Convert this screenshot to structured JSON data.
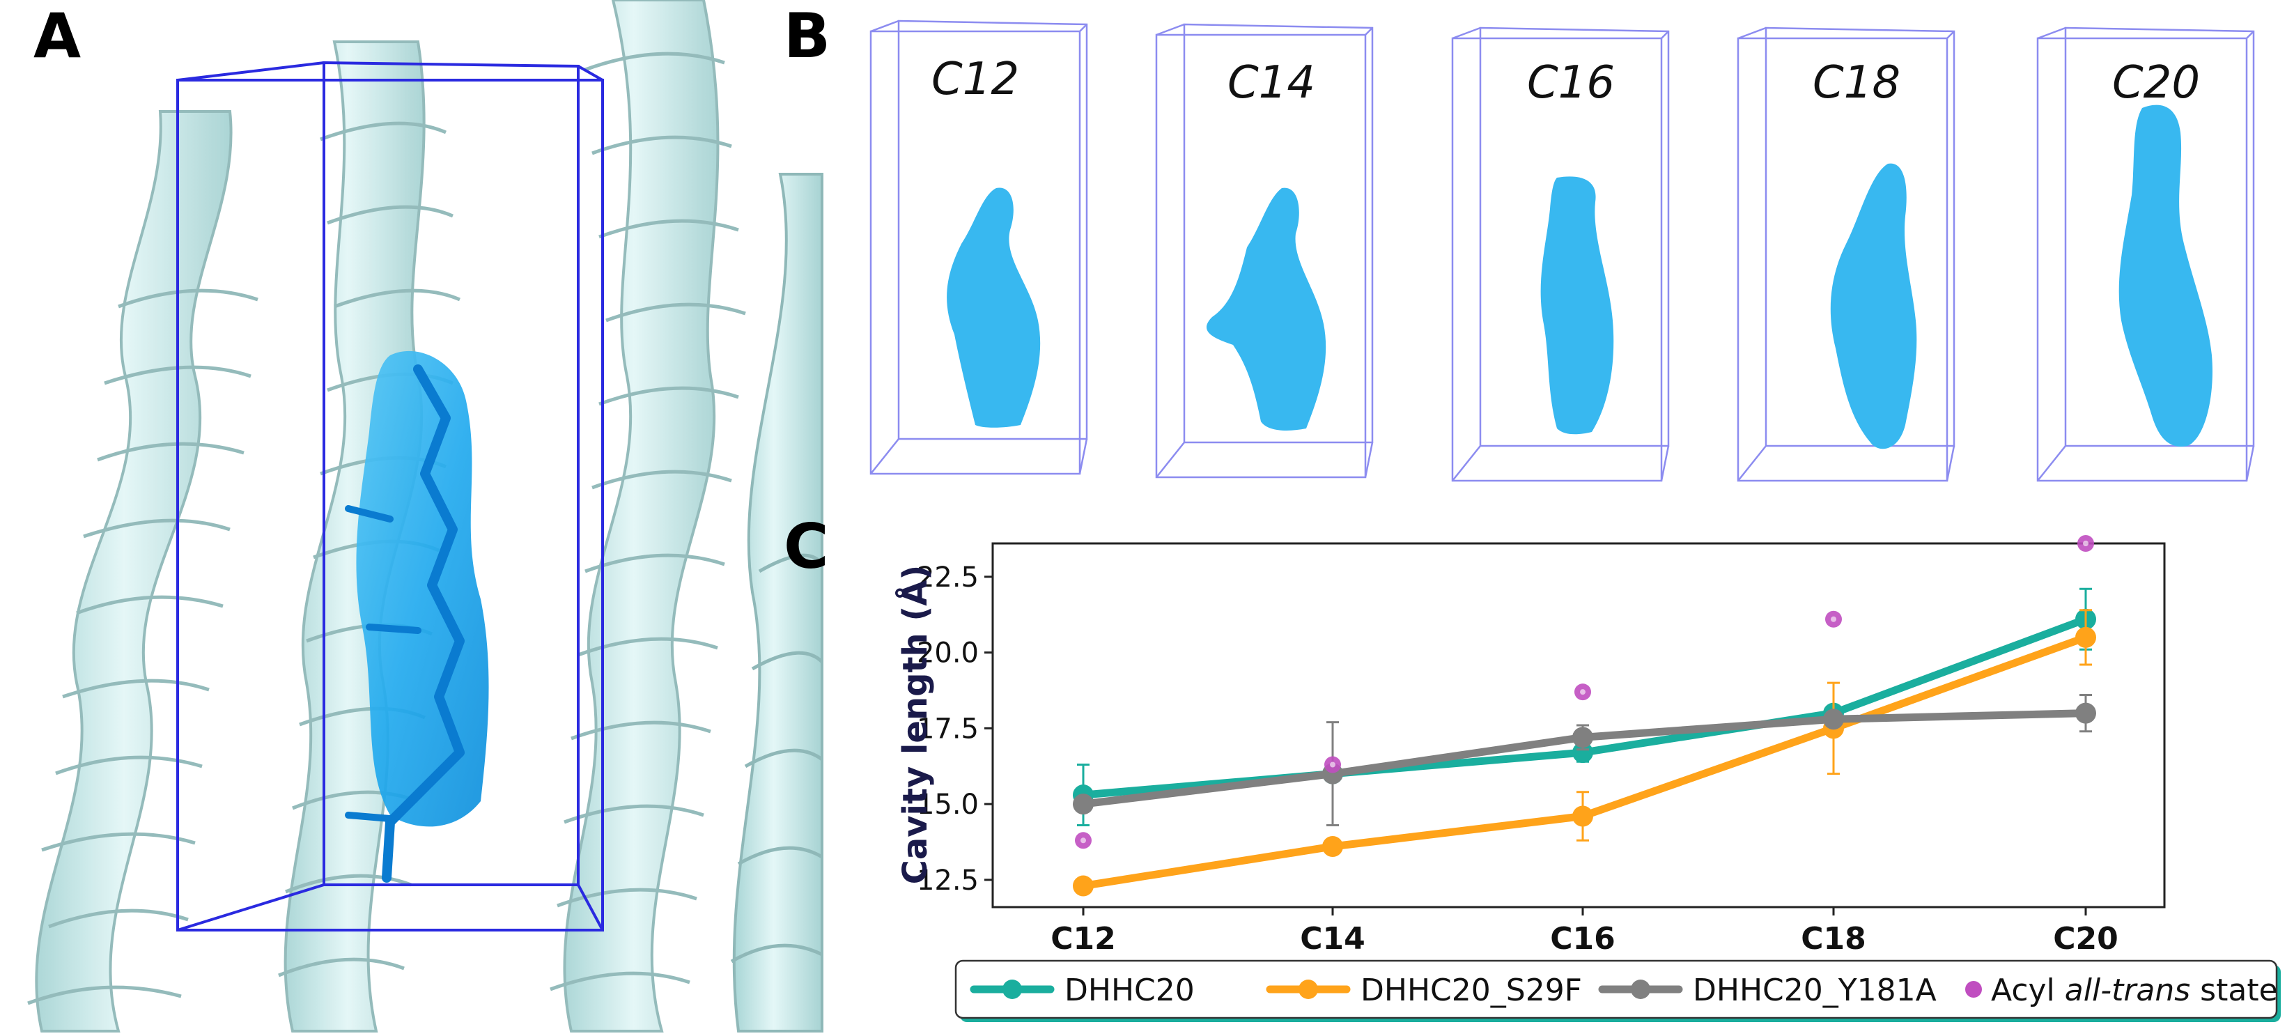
{
  "panels": {
    "a": "A",
    "b": "B",
    "c": "C"
  },
  "cavity_labels": [
    "C12",
    "C14",
    "C16",
    "C18",
    "C20"
  ],
  "colors": {
    "ribbon": "#c8ecec",
    "ribbon_edge": "#8fb8b8",
    "cavity": "#1ea8ec",
    "cavity_dark": "#0a7bd0",
    "box": "#2a2ae0",
    "box_light": "#8c8cf0",
    "dhhc20": "#1aae9e",
    "s29f": "#ffa31a",
    "y181a": "#808080",
    "alltrans": "#c04ec0"
  },
  "chart_data": {
    "type": "line",
    "title": "",
    "xlabel": "",
    "ylabel": "Cavity length (Å)",
    "categories": [
      "C12",
      "C14",
      "C16",
      "C18",
      "C20"
    ],
    "ylim": [
      11.6,
      23.6
    ],
    "yticks": [
      "12.5",
      "15.0",
      "17.5",
      "20.0",
      "22.5"
    ],
    "ytick_values": [
      12.5,
      15.0,
      17.5,
      20.0,
      22.5
    ],
    "series": [
      {
        "name": "DHHC20",
        "color": "#1aae9e",
        "values": [
          15.3,
          16.0,
          16.7,
          18.0,
          21.1
        ],
        "errors": [
          1.0,
          0.1,
          0.3,
          0.2,
          1.0
        ]
      },
      {
        "name": "DHHC20_S29F",
        "color": "#ffa31a",
        "values": [
          12.3,
          13.6,
          14.6,
          17.5,
          20.5
        ],
        "errors": [
          0.1,
          0.2,
          0.8,
          1.5,
          0.9
        ]
      },
      {
        "name": "DHHC20_Y181A",
        "color": "#808080",
        "values": [
          15.0,
          16.0,
          17.2,
          17.8,
          18.0
        ],
        "errors": [
          0.2,
          1.7,
          0.4,
          0.1,
          0.6
        ]
      }
    ],
    "scatter": {
      "name": "Acyl all-trans state",
      "color": "#c04ec0",
      "values": [
        13.8,
        16.3,
        18.7,
        21.1,
        23.6
      ]
    },
    "legend": {
      "placement": "bottom",
      "items": [
        "DHHC20",
        "DHHC20_S29F",
        "DHHC20_Y181A"
      ],
      "scatter_prefix": "Acyl ",
      "scatter_italic": "all-trans",
      "scatter_suffix": " state"
    }
  }
}
